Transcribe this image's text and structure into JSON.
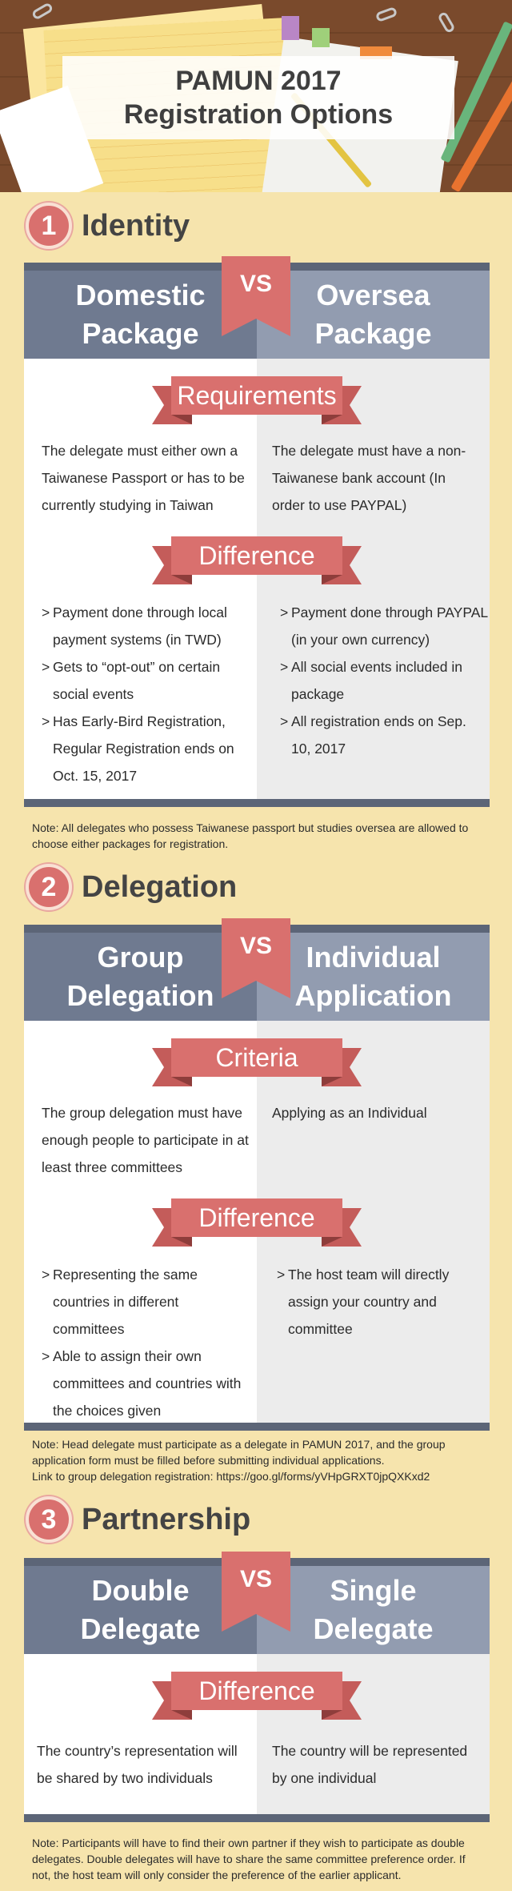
{
  "header": {
    "title_line1": "PAMUN 2017",
    "title_line2": "Registration Options"
  },
  "sections": [
    {
      "number": "1",
      "title": "Identity",
      "left_header": [
        "Domestic",
        "Package"
      ],
      "right_header": [
        "Oversea",
        "Package"
      ],
      "vs": "VS",
      "blocks": [
        {
          "ribbon": "Requirements",
          "left_text": "The delegate must either own a Taiwanese Passport or has to be currently studying in Taiwan",
          "right_text": "The delegate must have a non-Taiwanese bank account (In order to use PAYPAL)"
        },
        {
          "ribbon": "Difference",
          "left_items": [
            "Payment done through local payment systems (in TWD)",
            "Gets to “opt-out” on certain social events",
            "Has Early-Bird Registration, Regular Registration ends on Oct. 15, 2017"
          ],
          "right_items": [
            "Payment done through PAYPAL (in your own currency)",
            "All social events included in package",
            "All registration ends on Sep. 10, 2017"
          ]
        }
      ],
      "note": "Note:  All delegates who possess Taiwanese passport but studies oversea are allowed to choose either packages for registration."
    },
    {
      "number": "2",
      "title": "Delegation",
      "left_header": [
        "Group",
        "Delegation"
      ],
      "right_header": [
        "Individual",
        "Application"
      ],
      "vs": "VS",
      "blocks": [
        {
          "ribbon": "Criteria",
          "left_text": "The group delegation must have enough people to participate in at least three committees",
          "right_text": "Applying as an Individual"
        },
        {
          "ribbon": "Difference",
          "left_items": [
            "Representing the same countries in different committees",
            "Able to assign their own committees and countries with the choices given"
          ],
          "right_items": [
            "The host team will directly assign your country and  committee"
          ]
        }
      ],
      "note_lines": [
        "Note: Head delegate must participate as a delegate in PAMUN 2017, and the group application form must be filled before submitting individual applications.",
        "Link to group delegation registration:  https://goo.gl/forms/yVHpGRXT0jpQXKxd2"
      ]
    },
    {
      "number": "3",
      "title": "Partnership",
      "left_header": [
        "Double",
        "Delegate"
      ],
      "right_header": [
        "Single",
        "Delegate"
      ],
      "vs": "VS",
      "blocks": [
        {
          "ribbon": "Difference",
          "left_text": "The country’s representation will be shared by two individuals",
          "right_text": "The country will be represented by one individual"
        }
      ],
      "note": "Note:  Participants will have to find their own partner if they wish to participate as double delegates. Double delegates will have to share the same committee preference order. If not, the host team will only consider the preference of the earlier applicant."
    }
  ],
  "bullet": ">",
  "colors": {
    "background": "#f6e4ad",
    "accent_red": "#d9706e",
    "header_dark": "#6f7a90",
    "header_light": "#929cb0",
    "bar": "#5c6577"
  }
}
